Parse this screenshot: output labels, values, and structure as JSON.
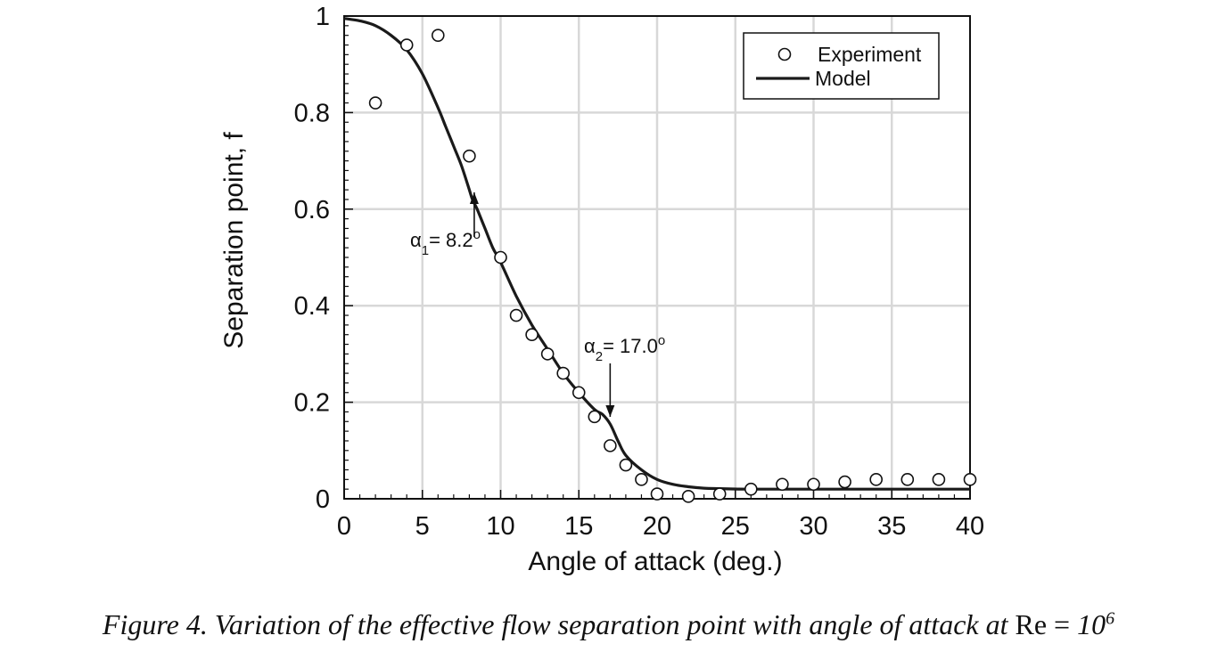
{
  "chart_data": {
    "type": "scatter",
    "xlabel": "Angle of attack (deg.)",
    "ylabel": "Separation point, f",
    "xlim": [
      0,
      40
    ],
    "ylim": [
      0,
      1
    ],
    "x_ticks": [
      0,
      5,
      10,
      15,
      20,
      25,
      30,
      35,
      40
    ],
    "y_ticks": [
      0,
      0.2,
      0.4,
      0.6,
      0.8,
      1
    ],
    "y_tick_labels": [
      "0",
      "0.2",
      "0.4",
      "0.6",
      "0.8",
      "1"
    ],
    "grid": true,
    "legend_position": "top-right",
    "series": [
      {
        "name": "Experiment",
        "kind": "markers",
        "marker": "open-circle",
        "x": [
          2,
          4,
          6,
          8,
          10,
          11,
          12,
          13,
          14,
          15,
          16,
          17,
          18,
          19,
          20,
          22,
          24,
          26,
          28,
          30,
          32,
          34,
          36,
          38,
          40
        ],
        "y": [
          0.82,
          0.94,
          0.96,
          0.71,
          0.5,
          0.38,
          0.34,
          0.3,
          0.26,
          0.22,
          0.17,
          0.11,
          0.07,
          0.04,
          0.01,
          0.005,
          0.01,
          0.02,
          0.03,
          0.03,
          0.035,
          0.04,
          0.04,
          0.04,
          0.04
        ]
      },
      {
        "name": "Model",
        "kind": "line",
        "x": [
          0,
          1,
          2,
          3,
          4,
          5,
          6,
          6.5,
          7,
          7.5,
          8,
          8.2,
          8.5,
          9,
          9.5,
          10,
          11,
          12,
          13,
          14,
          15,
          16,
          16.5,
          17,
          17.5,
          18,
          19,
          20,
          21,
          22,
          23,
          24,
          26,
          30,
          35,
          40
        ],
        "y": [
          0.995,
          0.99,
          0.98,
          0.96,
          0.93,
          0.88,
          0.81,
          0.77,
          0.73,
          0.69,
          0.64,
          0.62,
          0.6,
          0.56,
          0.52,
          0.49,
          0.42,
          0.36,
          0.31,
          0.26,
          0.22,
          0.185,
          0.175,
          0.155,
          0.12,
          0.09,
          0.06,
          0.04,
          0.03,
          0.025,
          0.022,
          0.021,
          0.02,
          0.02,
          0.02,
          0.02
        ]
      }
    ],
    "annotations": [
      {
        "symbol": "α",
        "subscript": "1",
        "text": "= 8.2",
        "superscript": "o",
        "x": 8.2,
        "y": 0.62
      },
      {
        "symbol": "α",
        "subscript": "2",
        "text": "= 17.0",
        "superscript": "o",
        "x": 17.0,
        "y": 0.155
      }
    ]
  },
  "caption": {
    "main": "Figure 4.  Variation of the effective flow separation point with angle of attack at ",
    "re_label": "Re",
    "equals": " = ",
    "base": "10",
    "exponent": "6"
  }
}
